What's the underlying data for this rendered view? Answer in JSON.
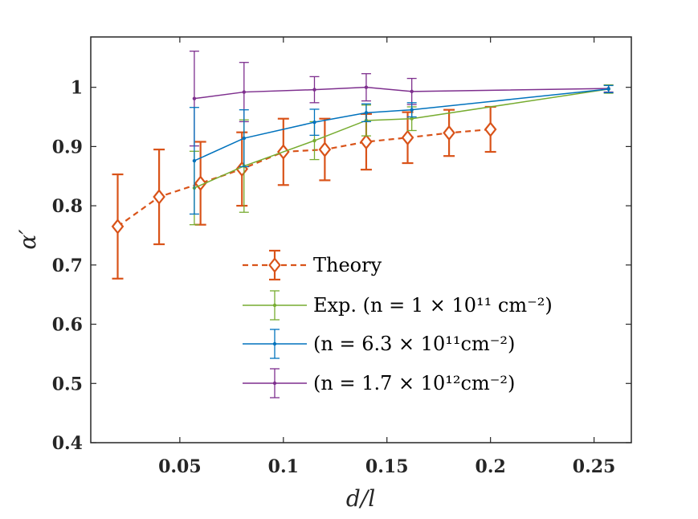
{
  "chart_data": {
    "type": "line",
    "title": "",
    "xlabel": "d/l",
    "ylabel": "α′",
    "xlim": [
      0.007,
      0.268
    ],
    "ylim": [
      0.4,
      1.085
    ],
    "x_ticks": [
      0.05,
      0.1,
      0.15,
      0.2,
      0.25
    ],
    "x_tick_labels": [
      "0.05",
      "0.1",
      "0.15",
      "0.2",
      "0.25"
    ],
    "y_ticks": [
      0.4,
      0.5,
      0.6,
      0.7,
      0.8,
      0.9,
      1.0
    ],
    "y_tick_labels": [
      "0.4",
      "0.5",
      "0.6",
      "0.7",
      "0.8",
      "0.9",
      "1"
    ],
    "grid": false,
    "legend_position": "bottom-center",
    "series": [
      {
        "name": "Theory",
        "legend_label": "Theory",
        "color": "#D95319",
        "line": "dashed",
        "marker": "diamond",
        "x": [
          0.02,
          0.04,
          0.06,
          0.08,
          0.1,
          0.12,
          0.14,
          0.16,
          0.18,
          0.2
        ],
        "y": [
          0.765,
          0.815,
          0.838,
          0.862,
          0.891,
          0.895,
          0.908,
          0.915,
          0.923,
          0.929
        ],
        "err": [
          0.088,
          0.08,
          0.07,
          0.062,
          0.056,
          0.052,
          0.047,
          0.043,
          0.039,
          0.038
        ]
      },
      {
        "name": "Exp. n=1e11",
        "legend_label": "Exp. (n = 1 × 10¹¹ cm⁻²)",
        "color": "#77AC30",
        "line": "solid",
        "marker": "dot",
        "x": [
          0.057,
          0.081,
          0.115,
          0.14,
          0.162,
          0.257
        ],
        "y": [
          0.83,
          0.867,
          0.91,
          0.944,
          0.947,
          0.997
        ],
        "err": [
          0.062,
          0.078,
          0.032,
          0.026,
          0.02,
          0.007
        ]
      },
      {
        "name": "n=6.3e11",
        "legend_label": "(n = 6.3 × 10¹¹cm⁻²)",
        "color": "#0072BD",
        "line": "solid",
        "marker": "dot",
        "x": [
          0.057,
          0.081,
          0.115,
          0.14,
          0.162,
          0.257
        ],
        "y": [
          0.876,
          0.914,
          0.941,
          0.957,
          0.962,
          0.997
        ],
        "err": [
          0.09,
          0.048,
          0.022,
          0.015,
          0.012,
          0.006
        ]
      },
      {
        "name": "n=1.7e12",
        "legend_label": "(n = 1.7 × 10¹²cm⁻²)",
        "color": "#7E2F8E",
        "line": "solid",
        "marker": "dot",
        "x": [
          0.057,
          0.081,
          0.115,
          0.14,
          0.162,
          0.257
        ],
        "y": [
          0.981,
          0.992,
          0.996,
          1.0,
          0.993,
          0.998
        ],
        "err": [
          0.08,
          0.05,
          0.022,
          0.023,
          0.022,
          0.006
        ]
      }
    ]
  }
}
